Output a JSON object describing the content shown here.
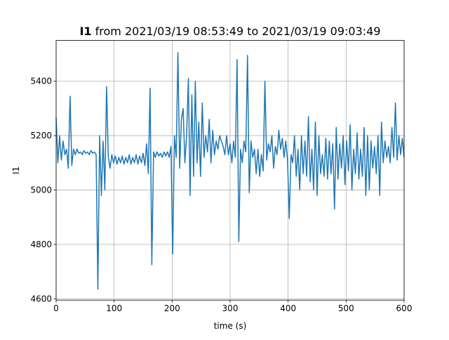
{
  "chart_data": {
    "type": "line",
    "title_bold": "I1",
    "title_rest": " from 2021/03/19 08:53:49 to 2021/03/19 09:03:49",
    "xlabel": "time (s)",
    "ylabel": "I1",
    "xlim": [
      0,
      600
    ],
    "ylim": [
      4595,
      5550
    ],
    "xticks": [
      0,
      100,
      200,
      300,
      400,
      500,
      600
    ],
    "yticks": [
      4600,
      4800,
      5000,
      5200,
      5400
    ],
    "grid": true,
    "line_color": "#1f77b4",
    "series": [
      {
        "x": [
          0,
          3,
          6,
          9,
          12,
          15,
          18,
          21,
          24,
          27,
          30,
          33,
          36,
          39,
          42,
          45,
          48,
          51,
          54,
          57,
          60,
          63,
          66,
          69,
          72,
          75,
          78,
          81,
          84,
          87,
          90,
          93,
          96,
          99,
          102,
          105,
          108,
          111,
          114,
          117,
          120,
          123,
          126,
          129,
          132,
          135,
          138,
          141,
          144,
          147,
          150,
          153,
          156,
          159,
          162,
          165,
          168,
          171,
          174,
          177,
          180,
          183,
          186,
          189,
          192,
          195,
          198,
          201,
          204,
          207,
          210,
          213,
          216,
          219,
          222,
          225,
          228,
          231,
          234,
          237,
          240,
          243,
          246,
          249,
          252,
          255,
          258,
          261,
          264,
          267,
          270,
          273,
          276,
          279,
          282,
          285,
          288,
          291,
          294,
          297,
          300,
          303,
          306,
          309,
          312,
          315,
          318,
          321,
          324,
          327,
          330,
          333,
          336,
          339,
          342,
          345,
          348,
          351,
          354,
          357,
          360,
          363,
          366,
          369,
          372,
          375,
          378,
          381,
          384,
          387,
          390,
          393,
          396,
          399,
          402,
          405,
          408,
          411,
          414,
          417,
          420,
          423,
          426,
          429,
          432,
          435,
          438,
          441,
          444,
          447,
          450,
          453,
          456,
          459,
          462,
          465,
          468,
          471,
          474,
          477,
          480,
          483,
          486,
          489,
          492,
          495,
          498,
          501,
          504,
          507,
          510,
          513,
          516,
          519,
          522,
          525,
          528,
          531,
          534,
          537,
          540,
          543,
          546,
          549,
          552,
          555,
          558,
          561,
          564,
          567,
          570,
          573,
          576,
          579,
          582,
          585,
          588,
          591,
          594,
          597,
          600
        ],
        "y": [
          5265,
          5100,
          5200,
          5110,
          5180,
          5130,
          5150,
          5080,
          5345,
          5090,
          5150,
          5130,
          5150,
          5135,
          5140,
          5130,
          5145,
          5135,
          5140,
          5130,
          5145,
          5135,
          5140,
          5130,
          4635,
          5200,
          4980,
          5180,
          5000,
          5380,
          5120,
          5080,
          5130,
          5100,
          5125,
          5095,
          5120,
          5100,
          5125,
          5095,
          5120,
          5100,
          5130,
          5095,
          5120,
          5100,
          5130,
          5095,
          5125,
          5100,
          5135,
          5090,
          5170,
          5060,
          5375,
          4725,
          5140,
          5120,
          5140,
          5125,
          5135,
          5120,
          5140,
          5125,
          5140,
          5120,
          5160,
          4765,
          5200,
          5120,
          5505,
          5080,
          5260,
          5300,
          5100,
          5200,
          5410,
          4980,
          5350,
          5050,
          5400,
          5100,
          5250,
          5050,
          5320,
          5120,
          5200,
          5140,
          5260,
          5100,
          5220,
          5130,
          5180,
          5150,
          5200,
          5180,
          5160,
          5130,
          5200,
          5130,
          5170,
          5100,
          5180,
          5120,
          5480,
          4810,
          5150,
          5100,
          5180,
          5140,
          5495,
          4990,
          5180,
          5120,
          5150,
          5060,
          5150,
          5050,
          5130,
          5070,
          5400,
          5110,
          5170,
          5140,
          5200,
          5080,
          5160,
          5130,
          5220,
          5150,
          5190,
          5120,
          5180,
          5110,
          4895,
          5130,
          5100,
          5200,
          5050,
          5150,
          5000,
          5200,
          5060,
          5180,
          5050,
          5270,
          5030,
          5150,
          5000,
          5250,
          4980,
          5200,
          5060,
          5130,
          5050,
          5190,
          5040,
          5180,
          5060,
          5170,
          4930,
          5230,
          5040,
          5170,
          5080,
          5200,
          5020,
          5180,
          5070,
          5240,
          5000,
          5150,
          5060,
          5210,
          5040,
          5150,
          5050,
          5230,
          4980,
          5200,
          5000,
          5180,
          5080,
          5160,
          5060,
          5200,
          4980,
          5250,
          5100,
          5180,
          5120,
          5160,
          5100,
          5230,
          5120,
          5320,
          5110,
          5200,
          5130,
          5190,
          5120
        ]
      }
    ]
  }
}
